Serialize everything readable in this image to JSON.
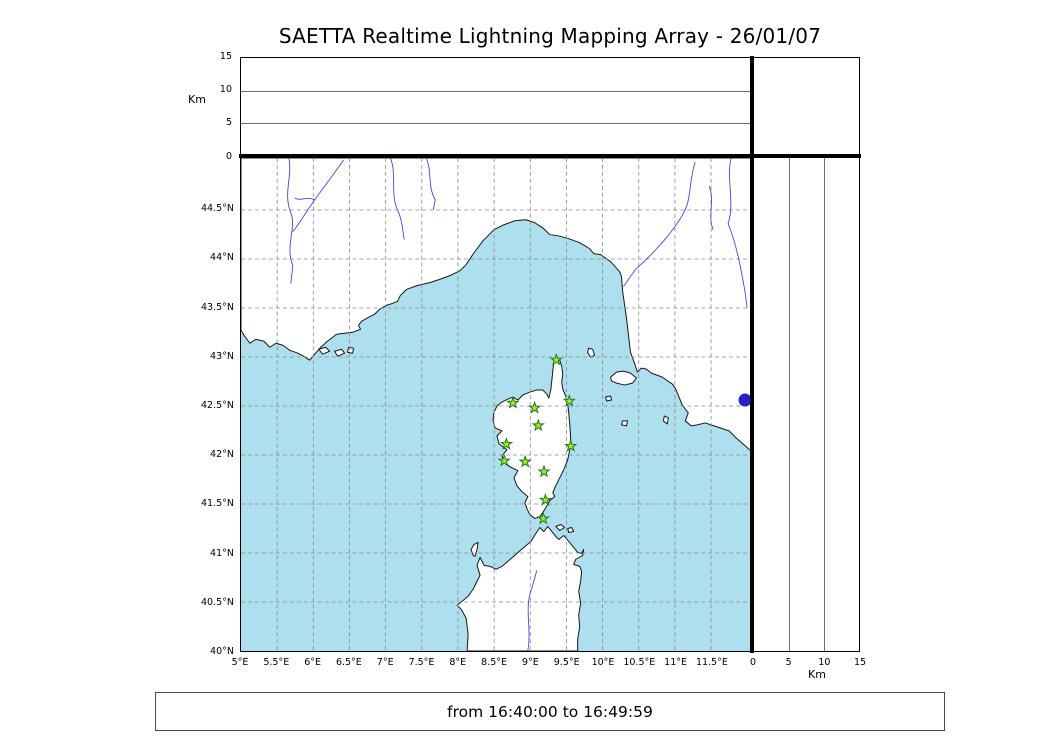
{
  "title": "SAETTA Realtime Lightning Mapping Array - 26/01/07",
  "status_bar": {
    "text": "from 16:40:00 to 16:49:59"
  },
  "panels": {
    "top": {
      "axis_label": "Km",
      "ticks": [
        {
          "value": 15,
          "label": "15"
        },
        {
          "value": 10,
          "label": "10"
        },
        {
          "value": 5,
          "label": "5"
        },
        {
          "value": 0,
          "label": "0"
        }
      ],
      "grid_values": [
        5,
        10
      ]
    },
    "right": {
      "axis_label": "Km",
      "ticks": [
        {
          "value": 0,
          "label": "0"
        },
        {
          "value": 5,
          "label": "5"
        },
        {
          "value": 10,
          "label": "10"
        },
        {
          "value": 15,
          "label": "15"
        }
      ],
      "grid_values": [
        5,
        10
      ]
    }
  },
  "map": {
    "sea_color": "#aedfef",
    "land_color": "#ffffff",
    "coast_color": "#161616",
    "grid_color": "#8a8a8a",
    "river_color": "#4646cf",
    "station_fill": "#a6e832",
    "station_stroke": "#1d7a1d",
    "event_color": "#2222cc",
    "lat_ticks": [
      {
        "value": 44.5,
        "label": "44.5°N"
      },
      {
        "value": 44,
        "label": "44°N"
      },
      {
        "value": 43.5,
        "label": "43.5°N"
      },
      {
        "value": 43,
        "label": "43°N"
      },
      {
        "value": 42.5,
        "label": "42.5°N"
      },
      {
        "value": 42,
        "label": "42°N"
      },
      {
        "value": 41.5,
        "label": "41.5°N"
      },
      {
        "value": 41,
        "label": "41°N"
      },
      {
        "value": 40.5,
        "label": "40.5°N"
      },
      {
        "value": 40,
        "label": "40°N"
      }
    ],
    "lon_ticks": [
      {
        "value": 5,
        "label": "5°E"
      },
      {
        "value": 5.5,
        "label": "5.5°E"
      },
      {
        "value": 6,
        "label": "6°E"
      },
      {
        "value": 6.5,
        "label": "6.5°E"
      },
      {
        "value": 7,
        "label": "7°E"
      },
      {
        "value": 7.5,
        "label": "7.5°E"
      },
      {
        "value": 8,
        "label": "8°E"
      },
      {
        "value": 8.5,
        "label": "8.5°E"
      },
      {
        "value": 9,
        "label": "9°E"
      },
      {
        "value": 9.5,
        "label": "9.5°E"
      },
      {
        "value": 10,
        "label": "10°E"
      },
      {
        "value": 10.5,
        "label": "10.5°E"
      },
      {
        "value": 11,
        "label": "11°E"
      },
      {
        "value": 11.5,
        "label": "11.5°E"
      }
    ],
    "stations": [
      {
        "lon": 9.36,
        "lat": 42.97
      },
      {
        "lon": 8.76,
        "lat": 42.53
      },
      {
        "lon": 9.06,
        "lat": 42.48
      },
      {
        "lon": 9.54,
        "lat": 42.55
      },
      {
        "lon": 9.11,
        "lat": 42.3
      },
      {
        "lon": 8.67,
        "lat": 42.11
      },
      {
        "lon": 9.56,
        "lat": 42.09
      },
      {
        "lon": 8.64,
        "lat": 41.94
      },
      {
        "lon": 8.93,
        "lat": 41.93
      },
      {
        "lon": 9.19,
        "lat": 41.83
      },
      {
        "lon": 9.21,
        "lat": 41.54
      },
      {
        "lon": 9.18,
        "lat": 41.35
      }
    ],
    "event_marker": {
      "lon": 11.97,
      "lat": 42.56
    }
  }
}
